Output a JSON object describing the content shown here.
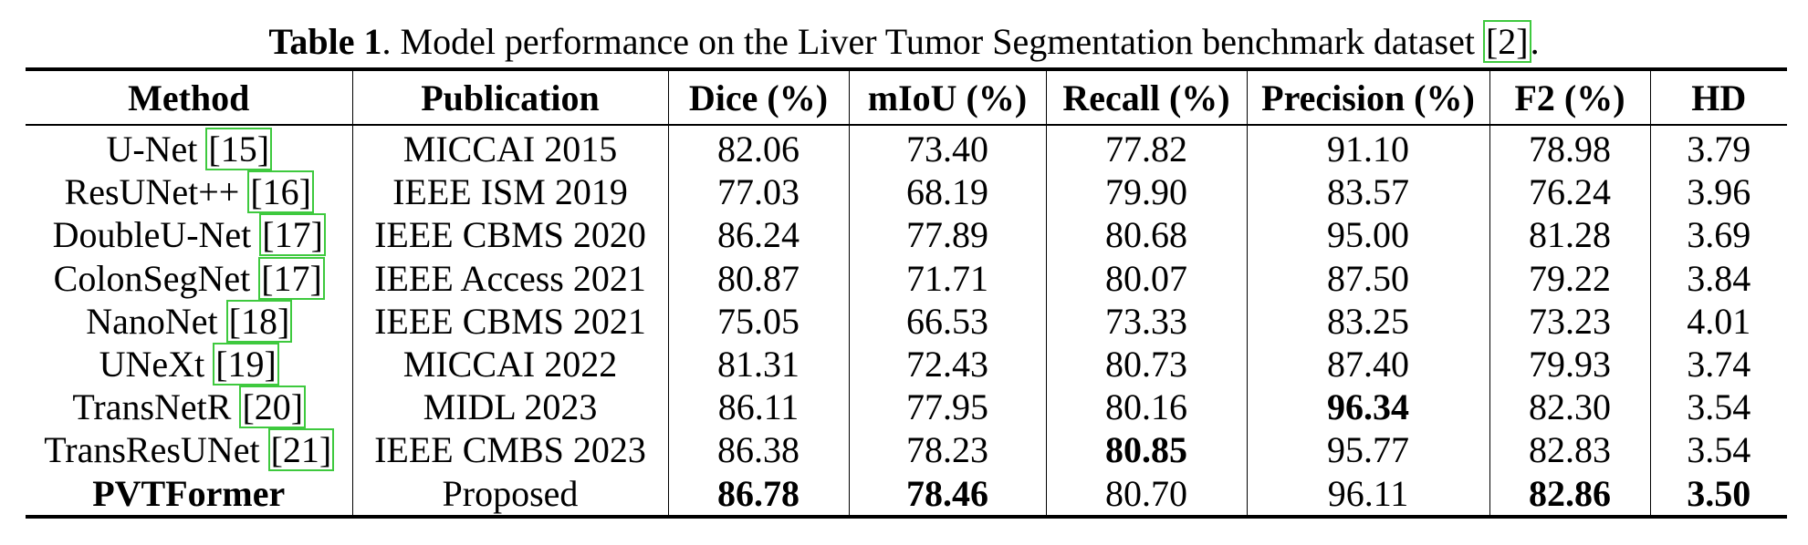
{
  "caption": {
    "label": "Table 1",
    "text_before": ". Model performance on the Liver Tumor Segmentation benchmark dataset ",
    "cite": "[2]",
    "text_after": "."
  },
  "table": {
    "headers": [
      "Method",
      "Publication",
      "Dice (%)",
      "mIoU (%)",
      "Recall (%)",
      "Precision (%)",
      "F2 (%)",
      "HD"
    ],
    "rows": [
      {
        "method": "U-Net",
        "cite": "[15]",
        "publication": "MICCAI 2015",
        "dice": "82.06",
        "miou": "73.40",
        "recall": "77.82",
        "precision": "91.10",
        "f2": "78.98",
        "hd": "3.79"
      },
      {
        "method": "ResUNet++",
        "cite": "[16]",
        "publication": "IEEE ISM 2019",
        "dice": "77.03",
        "miou": "68.19",
        "recall": "79.90",
        "precision": "83.57",
        "f2": "76.24",
        "hd": "3.96"
      },
      {
        "method": "DoubleU-Net",
        "cite": "[17]",
        "publication": "IEEE CBMS 2020",
        "dice": "86.24",
        "miou": "77.89",
        "recall": "80.68",
        "precision": "95.00",
        "f2": "81.28",
        "hd": "3.69"
      },
      {
        "method": "ColonSegNet",
        "cite": "[17]",
        "publication": "IEEE Access 2021",
        "dice": "80.87",
        "miou": "71.71",
        "recall": "80.07",
        "precision": "87.50",
        "f2": "79.22",
        "hd": "3.84"
      },
      {
        "method": "NanoNet",
        "cite": "[18]",
        "publication": "IEEE CBMS 2021",
        "dice": "75.05",
        "miou": "66.53",
        "recall": "73.33",
        "precision": "83.25",
        "f2": "73.23",
        "hd": "4.01"
      },
      {
        "method": "UNeXt",
        "cite": "[19]",
        "publication": "MICCAI 2022",
        "dice": "81.31",
        "miou": "72.43",
        "recall": "80.73",
        "precision": "87.40",
        "f2": "79.93",
        "hd": "3.74"
      },
      {
        "method": "TransNetR",
        "cite": "[20]",
        "publication": "MIDL 2023",
        "dice": "86.11",
        "miou": "77.95",
        "recall": "80.16",
        "precision": "96.34",
        "f2": "82.30",
        "hd": "3.54"
      },
      {
        "method": "TransResUNet",
        "cite": "[21]",
        "publication": "IEEE CMBS 2023",
        "dice": "86.38",
        "miou": "78.23",
        "recall": "80.85",
        "precision": "95.77",
        "f2": "82.83",
        "hd": "3.54"
      },
      {
        "method": "PVTFormer",
        "cite": "",
        "publication": "Proposed",
        "dice": "86.78",
        "miou": "78.46",
        "recall": "80.70",
        "precision": "96.11",
        "f2": "82.86",
        "hd": "3.50"
      }
    ],
    "bold_cells": [
      {
        "row": 6,
        "col": "precision"
      },
      {
        "row": 7,
        "col": "recall"
      },
      {
        "row": 8,
        "col": "dice"
      },
      {
        "row": 8,
        "col": "miou"
      },
      {
        "row": 8,
        "col": "f2"
      },
      {
        "row": 8,
        "col": "hd"
      }
    ],
    "bold_method_row": 8
  },
  "colors": {
    "citation_box": "#3ec93e",
    "text": "#000000"
  }
}
